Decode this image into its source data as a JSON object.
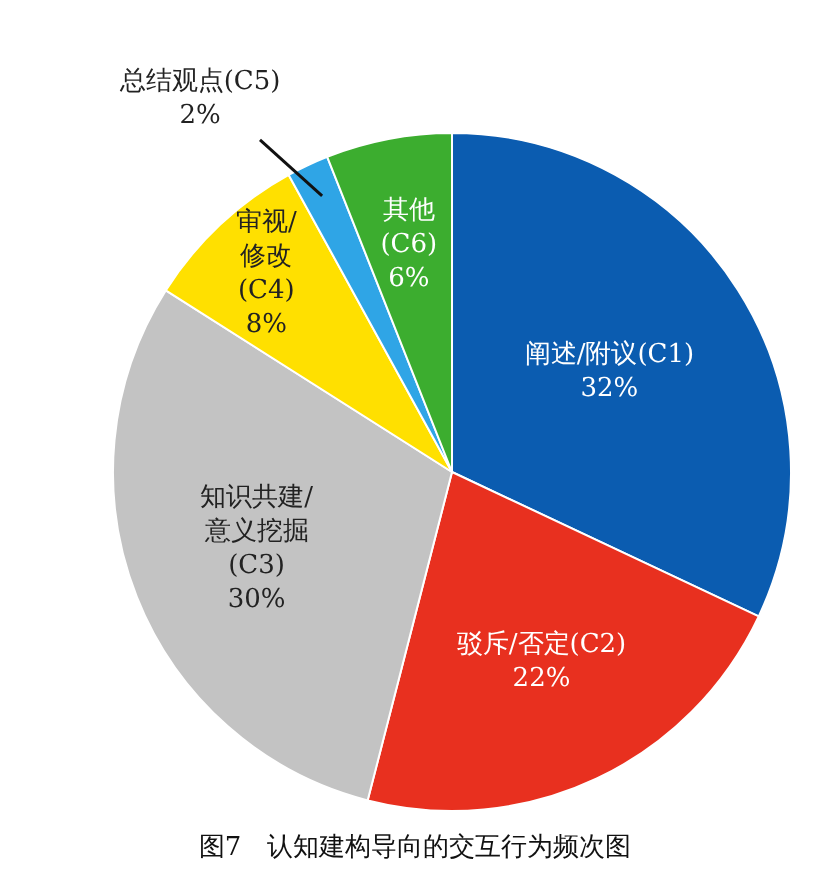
{
  "chart_data": {
    "type": "pie",
    "title": "图7　认知建构导向的交互行为频次图",
    "categories": [
      "阐述/附议(C1)",
      "驳斥/否定(C2)",
      "知识共建/意义挖掘(C3)",
      "审视/修改(C4)",
      "总结观点(C5)",
      "其他(C6)"
    ],
    "values": [
      32,
      22,
      30,
      8,
      2,
      6
    ],
    "value_labels": [
      "32%",
      "22%",
      "30%",
      "8%",
      "2%",
      "6%"
    ],
    "colors": [
      "#0b5cb0",
      "#e8301f",
      "#c3c3c3",
      "#ffe000",
      "#2fa5e6",
      "#3cad2f"
    ]
  }
}
